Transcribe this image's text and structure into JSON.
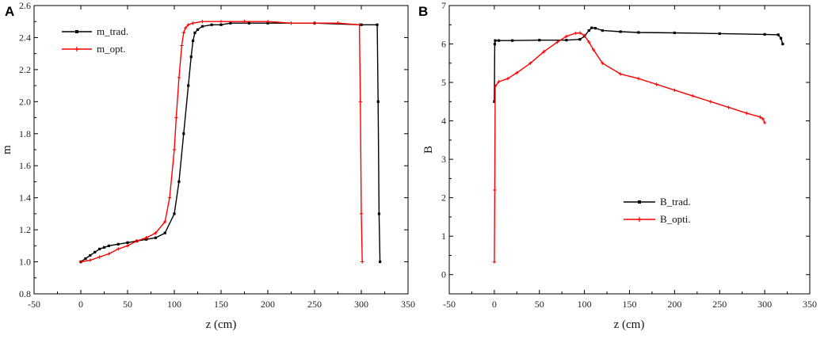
{
  "chart_data": [
    {
      "type": "line",
      "panel": "A",
      "xlabel": "z (cm)",
      "ylabel": "m",
      "xlim": [
        -50,
        350
      ],
      "ylim": [
        0.8,
        2.6
      ],
      "xticks": [
        -50,
        0,
        50,
        100,
        150,
        200,
        250,
        300,
        350
      ],
      "yticks": [
        0.8,
        1.0,
        1.2,
        1.4,
        1.6,
        1.8,
        2.0,
        2.2,
        2.4,
        2.6
      ],
      "xtick_labels": [
        "-50",
        "0",
        "50",
        "100",
        "150",
        "200",
        "250",
        "300",
        "350"
      ],
      "ytick_labels": [
        "0.8",
        "1.0",
        "1.2",
        "1.4",
        "1.6",
        "1.8",
        "2.0",
        "2.2",
        "2.4",
        "2.6"
      ],
      "grid": false,
      "legend_position": "top-left",
      "series": [
        {
          "name": "m_trad.",
          "color": "#000000",
          "marker": "square",
          "x": [
            0,
            5,
            10,
            15,
            20,
            25,
            30,
            40,
            50,
            60,
            70,
            80,
            90,
            100,
            105,
            110,
            115,
            118,
            120,
            122,
            125,
            130,
            140,
            150,
            160,
            180,
            200,
            250,
            300,
            317,
            318,
            319,
            320
          ],
          "y": [
            1.0,
            1.02,
            1.04,
            1.06,
            1.08,
            1.09,
            1.1,
            1.11,
            1.12,
            1.13,
            1.14,
            1.15,
            1.18,
            1.3,
            1.5,
            1.8,
            2.1,
            2.28,
            2.38,
            2.43,
            2.45,
            2.47,
            2.48,
            2.48,
            2.49,
            2.49,
            2.49,
            2.49,
            2.48,
            2.48,
            2.0,
            1.3,
            1.0
          ]
        },
        {
          "name": "m_opt.",
          "color": "#ff0000",
          "marker": "plus",
          "x": [
            0,
            10,
            20,
            30,
            40,
            50,
            60,
            70,
            80,
            90,
            95,
            100,
            102,
            105,
            108,
            110,
            112,
            115,
            120,
            130,
            150,
            175,
            200,
            225,
            250,
            275,
            298,
            299,
            300,
            301
          ],
          "y": [
            1.0,
            1.01,
            1.03,
            1.05,
            1.08,
            1.1,
            1.13,
            1.15,
            1.18,
            1.25,
            1.4,
            1.7,
            1.9,
            2.15,
            2.35,
            2.43,
            2.46,
            2.48,
            2.49,
            2.5,
            2.5,
            2.5,
            2.5,
            2.49,
            2.49,
            2.49,
            2.48,
            2.0,
            1.3,
            1.0
          ]
        }
      ]
    },
    {
      "type": "line",
      "panel": "B",
      "xlabel": "z (cm)",
      "ylabel": "B",
      "xlim": [
        -50,
        350
      ],
      "ylim": [
        -0.5,
        7
      ],
      "xticks": [
        -50,
        0,
        50,
        100,
        150,
        200,
        250,
        300,
        350
      ],
      "yticks": [
        0,
        1,
        2,
        3,
        4,
        5,
        6,
        7
      ],
      "xtick_labels": [
        "-50",
        "0",
        "50",
        "100",
        "150",
        "200",
        "250",
        "300",
        "350"
      ],
      "ytick_labels": [
        "0",
        "1",
        "2",
        "3",
        "4",
        "5",
        "6",
        "7"
      ],
      "grid": false,
      "legend_position": "center-right",
      "series": [
        {
          "name": "B_trad.",
          "color": "#000000",
          "marker": "square",
          "x": [
            0,
            0.5,
            1,
            5,
            20,
            50,
            80,
            95,
            100,
            105,
            108,
            112,
            120,
            140,
            160,
            200,
            250,
            300,
            315,
            318,
            320
          ],
          "y": [
            4.5,
            6.0,
            6.09,
            6.09,
            6.09,
            6.1,
            6.1,
            6.12,
            6.2,
            6.35,
            6.42,
            6.41,
            6.35,
            6.32,
            6.3,
            6.29,
            6.27,
            6.25,
            6.24,
            6.15,
            6.0
          ]
        },
        {
          "name": "B_opti.",
          "color": "#ff0000",
          "marker": "plus",
          "x": [
            0,
            0.5,
            1,
            5,
            15,
            25,
            40,
            55,
            70,
            80,
            90,
            95,
            100,
            105,
            110,
            120,
            140,
            160,
            180,
            200,
            220,
            240,
            260,
            280,
            295,
            298,
            300
          ],
          "y": [
            0.33,
            2.2,
            4.9,
            5.02,
            5.1,
            5.25,
            5.5,
            5.8,
            6.05,
            6.2,
            6.28,
            6.29,
            6.22,
            6.05,
            5.85,
            5.5,
            5.22,
            5.1,
            4.95,
            4.8,
            4.65,
            4.5,
            4.35,
            4.2,
            4.1,
            4.05,
            3.95
          ]
        }
      ]
    }
  ],
  "panels": {
    "A": {
      "letter": "A"
    },
    "B": {
      "letter": "B"
    }
  }
}
